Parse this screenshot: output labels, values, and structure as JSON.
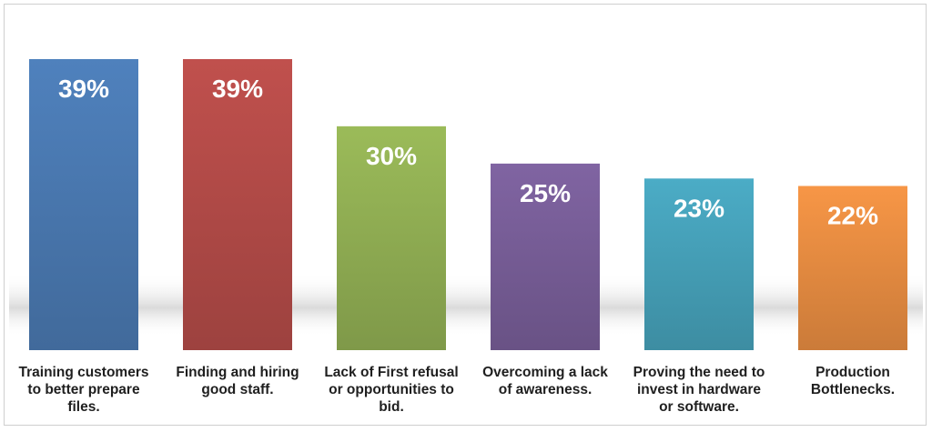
{
  "chart_data": {
    "type": "bar",
    "title": "",
    "xlabel": "",
    "ylabel": "",
    "ylim": [
      0,
      39
    ],
    "grid": false,
    "legend": "none",
    "categories": [
      "Training customers to better prepare files.",
      "Finding and hiring good staff.",
      "Lack of First refusal or opportunities to bid.",
      "Overcoming a lack of awareness.",
      "Proving the need to invest in hardware or software.",
      "Production Bottlenecks."
    ],
    "category_lines": [
      [
        "Training customers",
        "to better prepare",
        "files."
      ],
      [
        "Finding and hiring",
        "good staff."
      ],
      [
        "Lack of First refusal",
        "or opportunities to",
        "bid."
      ],
      [
        "Overcoming a lack",
        "of awareness."
      ],
      [
        "Proving the need to",
        "invest in hardware",
        "or software."
      ],
      [
        "Production",
        "Bottlenecks."
      ]
    ],
    "values": [
      39,
      39,
      30,
      25,
      23,
      22
    ],
    "data_labels": [
      "39%",
      "39%",
      "30%",
      "25%",
      "23%",
      "22%"
    ],
    "colors": [
      "#4f81bd",
      "#c0504d",
      "#9bbb59",
      "#8064a2",
      "#4bacc6",
      "#f79646"
    ]
  }
}
